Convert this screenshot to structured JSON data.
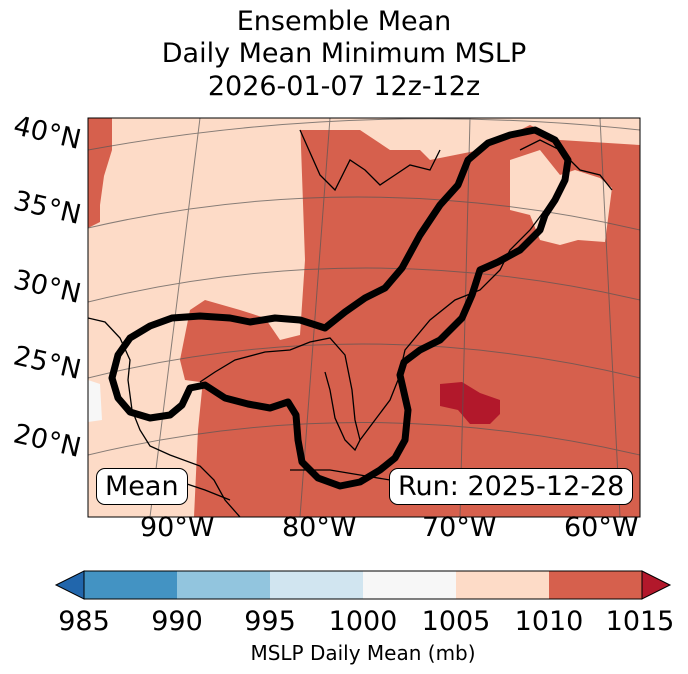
{
  "title": {
    "line1": "Ensemble Mean",
    "line2": "Daily Mean Minimum MSLP",
    "line3": "2026-01-07 12z-12z"
  },
  "map": {
    "region": "Eastern North America and Western Atlantic",
    "lat_labels": [
      "40°N",
      "35°N",
      "30°N",
      "25°N",
      "20°N"
    ],
    "lon_labels": [
      "90°W",
      "80°W",
      "70°W",
      "60°W"
    ],
    "contour_description": "black outline of ensemble low-pressure track",
    "mean_label": "Mean",
    "run_label": "Run: 2025-12-28",
    "colors": {
      "ocean_background": "#d6604d",
      "light_region": "#fddbc7",
      "deep_low": "#b2182b",
      "gray_region": "#f7f7f7",
      "contour": "#000000"
    }
  },
  "colorbar": {
    "label": "MSLP Daily Mean (mb)",
    "ticks": [
      "985",
      "990",
      "995",
      "1000",
      "1005",
      "1010",
      "1015"
    ],
    "segment_colors": [
      "#2166ac",
      "#4393c3",
      "#92c5de",
      "#d1e5f0",
      "#f7f7f7",
      "#fddbc7",
      "#d6604d",
      "#b2182b"
    ]
  }
}
